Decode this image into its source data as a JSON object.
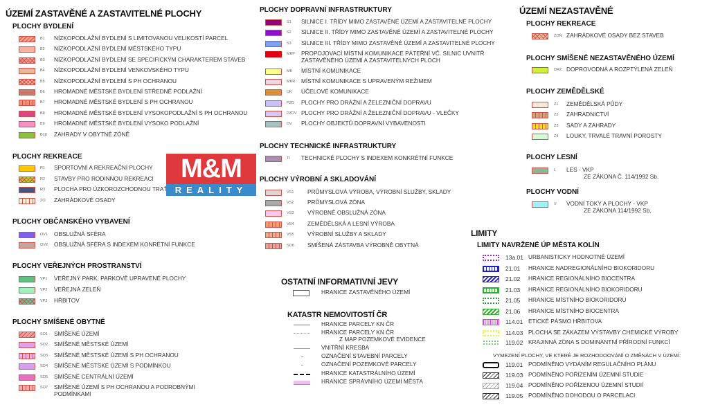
{
  "headings": {
    "built_up": "ÚZEMÍ ZASTAVĚNÉ A ZASTAVITELNÉ PLOCHY",
    "non_built": "ÚZEMÍ NEZASTAVĚNÉ",
    "other": "OSTATNÍ INFORMATIVNÍ JEVY",
    "cadastre": "KATASTR NEMOVITOSTÍ ČR",
    "limits": "LIMITY",
    "limits_sub": "LIMITY NAVRŽENÉ ÚP MĚSTA KOLÍN",
    "delimitation_note": "VYMEZENÍ PLOCHY, VE KTERÉ JE ROZHODOOVÁNÍ O ZMĚNÁCH V ÚZEMÍ:"
  },
  "logo": {
    "top": "M&M",
    "bottom": "REALITY",
    "colors": {
      "red": "#dc282d",
      "blue": "#2882c8"
    }
  },
  "groups": [
    {
      "title": "PLOCHY BYDLENÍ",
      "items": [
        {
          "code": "B1",
          "label": "NÍZKOPODLAŽNÍ BYDLENÍ S LIMITOVANOU VELIKOSTÍ PARCEL",
          "fill": "#f8a08a",
          "border": "#d0504a",
          "pattern": "hatch"
        },
        {
          "code": "B2",
          "label": "NÍZKOPODLAŽNÍ BYDLENÍ MĚSTSKÉHO TYPU",
          "fill": "#f9b0a0",
          "border": "#d0504a",
          "pattern": "solid"
        },
        {
          "code": "B3",
          "label": "NÍZKOPODLAŽNÍ BYDLENÍ  SE SPECIFICKÝM CHARAKTEREM STAVEB",
          "fill": "#f59a8a",
          "border": "#d0504a",
          "pattern": "cross"
        },
        {
          "code": "B4",
          "label": "NÍZKOPODLAŽNÍ BYDLENÍ VENKOVSKÉHO TYPU",
          "fill": "#e8b89a",
          "border": "#d0504a",
          "pattern": "solid"
        },
        {
          "code": "B5",
          "label": "NÍZKOPODLAŽNÍ BYDLENÍ S PH OCHRANOU",
          "fill": "#f4a898",
          "border": "#d0504a",
          "pattern": "cross"
        },
        {
          "code": "B6",
          "label": "HROMADNÉ MĚSTSKÉ BYDLENÍ STŘEDNĚ PODLAŽNÍ",
          "fill": "#c87868",
          "border": "#d0504a",
          "pattern": "solid"
        },
        {
          "code": "B7",
          "label": "HROMADNÉ MĚSTSKÉ BYDLENÍ S PH OCHRANOU",
          "fill": "#f89070",
          "border": "#d0504a",
          "pattern": "vbars"
        },
        {
          "code": "B8",
          "label": "HROMADNÉ MĚSTSKÉ BYDLENÍ VYSOKOPODLAŽNÍ S PH OCHRANOU",
          "fill": "#e040a0",
          "border": "#d0504a",
          "pattern": "hatch"
        },
        {
          "code": "B9",
          "label": "HROMADNÉ MĚSTSKÉ BYDLENÍ VYSOKO PODLAŽNÍ",
          "fill": "#f890c0",
          "border": "#d0504a",
          "pattern": "solid"
        },
        {
          "code": "B10",
          "label": "ZAHRADY V OBYTNÉ ZÓNĚ",
          "fill": "#8cc040",
          "border": "#d0504a",
          "pattern": "solid"
        }
      ]
    },
    {
      "title": "PLOCHY REKREACE",
      "items": [
        {
          "code": "R1",
          "label": "SPORTOVNÍ A REKREAČNÍ PLOCHY",
          "fill": "#ffc800",
          "border": "#d0504a",
          "pattern": "solid"
        },
        {
          "code": "R2",
          "label": "STAVBY PRO RODINNOU REKREACI",
          "fill": "#b8d030",
          "border": "#d0504a",
          "pattern": "cross"
        },
        {
          "code": "R3",
          "label": "PLOCHA PRO ÚZKOROZCHODNOU TRAŤ",
          "fill": "#3a5888",
          "border": "#d0504a",
          "pattern": "solid"
        },
        {
          "code": "ZO",
          "label": "ZAHRÁDKOVÉ OSADY",
          "fill": "#fff0d8",
          "border": "#d0504a",
          "pattern": "vbars"
        }
      ]
    },
    {
      "title": "PLOCHY OBČANSKÉHO VYBAVENÍ",
      "items": [
        {
          "code": "OV1",
          "label": "OBSLUŽNÁ SFÉRA",
          "fill": "#8060e8",
          "border": "#d0504a",
          "pattern": "solid"
        },
        {
          "code": "OV2",
          "label": "OBSLUŽNÁ SFÉRA S INDEXEM KONRÉTNÍ FUNKCE",
          "fill": "#c0a8a0",
          "border": "#d0504a",
          "pattern": "solid"
        }
      ]
    },
    {
      "title": "PLOCHY VEŘEJNÝCH PROSTRANSTVÍ",
      "items": [
        {
          "code": "VP1",
          "label": "VEŘEJNÝ PARK, PARKOVĚ UPRAVENÉ PLOCHY",
          "fill": "#60c080",
          "border": "#d0504a",
          "pattern": "solid"
        },
        {
          "code": "VP2",
          "label": "VEŘEJNÁ ZELEŇ",
          "fill": "#a0f0c0",
          "border": "#d0504a",
          "pattern": "solid"
        },
        {
          "code": "VP3",
          "label": "HŘBITOV",
          "fill": "#70c0a0",
          "border": "#d0504a",
          "pattern": "cross"
        }
      ]
    },
    {
      "title": "PLOCHY SMÍŠENÉ OBYTNÉ",
      "items": [
        {
          "code": "SO1",
          "label": "SMÍŠENÉ ÚZEMÍ",
          "fill": "#f0a0a0",
          "border": "#d0504a",
          "pattern": "hatch"
        },
        {
          "code": "SO2",
          "label": "SMÍŠENÉ MĚSTSKÉ ÚZEMÍ",
          "fill": "#e0a0f0",
          "border": "#d0504a",
          "pattern": "solid"
        },
        {
          "code": "SO3",
          "label": "SMÍŠENÉ MĚSTSKÉ ÚZEMÍ S PH OCHRANOU",
          "fill": "#e8b0f0",
          "border": "#d0504a",
          "pattern": "vbars"
        },
        {
          "code": "SO4",
          "label": "SMÍŠENÉ MĚSTSKÉ ÚZEMÍ S PODMÍNKOU",
          "fill": "#d8a0f0",
          "border": "#d0504a",
          "pattern": "solid"
        },
        {
          "code": "SO5",
          "label": "SMÍŠENÉ CENTRÁLNÍ ÚZEMÍ",
          "fill": "#e870c0",
          "border": "#d0504a",
          "pattern": "solid"
        },
        {
          "code": "SO7",
          "label": "SMÍŠENÉ ÚZEMÍ S PH OCHRANOU A PODROBNÝMI",
          "label2": "PODMÍNKAMI",
          "fill": "#f0b0b0",
          "border": "#d0504a",
          "pattern": "vbars"
        }
      ]
    },
    {
      "title": "PLOCHY DOPRAVNÍ INFRASTRUKTURY",
      "items": [
        {
          "code": "S1",
          "label": "SILNICE I. TŘÍDY MIMO ZASTAVĚNÉ ÚZEMÍ A ZASTAVITELNÉ PLOCHY",
          "fill": "#900080",
          "border": "#d0504a",
          "pattern": "solid"
        },
        {
          "code": "S2",
          "label": "SILNICE II. TŘÍDY MIMO ZASTAVĚNÉ ÚZEMÍ A ZASTAVITELNÉ PLOCHY",
          "fill": "#9010d0",
          "border": "#d0504a",
          "pattern": "solid"
        },
        {
          "code": "S3",
          "label": "SILNICE III. TŘÍDY MIMO ZASTAVĚNÉ ÚZEMÍ A ZASTAVITELNÉ PLOCHY",
          "fill": "#80a0f0",
          "border": "#d0504a",
          "pattern": "solid"
        },
        {
          "code": "MKP",
          "label": "PROPOJOVACÍ MÍSTNÍ KOMUNIKACE PÁTEŘNÍ VČ. SILNIC UVNITŘ",
          "label2": "ZASTAVĚNÉHO ÚZEMÍ A ZASTAVITELNÝCH PLOCH",
          "fill": "#e00010",
          "border": "#e00010",
          "pattern": "solid"
        },
        {
          "code": "MK",
          "label": "MÍSTNÍ KOMUNIKACE",
          "fill": "#ffff90",
          "border": "#d0504a",
          "pattern": "solid"
        },
        {
          "code": "MKR",
          "label": "MÍSTNÍ KOMUNIKACE S UPRAVENÝM REŽIMEM",
          "fill": "#e8d8e8",
          "border": "#d0504a",
          "pattern": "solid"
        },
        {
          "code": "UK",
          "label": "ÚČELOVÉ KOMUNIKACE",
          "fill": "#d89040",
          "border": "#d0504a",
          "pattern": "solid"
        },
        {
          "code": "PZD",
          "label": "PLOCHY PRO DRÁŽNÍ A ŽELEZNIČNÍ DOPRAVU",
          "fill": "#c8c0f8",
          "border": "#d0504a",
          "pattern": "solid"
        },
        {
          "code": "PZDV",
          "label": "PLOCHY PRO DRÁŽNÍ A ŽELEZNIČNÍ DOPRAVU - VLEČKY",
          "fill": "#d0c8f8",
          "border": "#d0504a",
          "pattern": "solid"
        },
        {
          "code": "DV",
          "label": "PLOCHY OBJEKTŮ DOPRAVNÍ VYBAVENOSTI",
          "fill": "#a8c0c0",
          "border": "#d0504a",
          "pattern": "solid"
        }
      ]
    },
    {
      "title": "PLOCHY TECHNICKÉ INFRASTRUKTURY",
      "items": [
        {
          "code": "TI",
          "label": "TECHNICKÉ PLOCHY S INDEXEM KONKRÉTNÍ FUNKCE",
          "fill": "#a890b0",
          "border": "#d0504a",
          "pattern": "solid"
        }
      ]
    },
    {
      "title": "PLOCHY VÝROBNÍ A SKLADOVÁNÍ",
      "items": [
        {
          "code": "VS1",
          "label": "PRŮMYSLOVÁ VÝROBA, VÝROBNÍ SLUŽBY, SKLADY",
          "fill": "#d8d8d8",
          "border": "#d0504a",
          "pattern": "solid"
        },
        {
          "code": "VS2",
          "label": "PRŮMYSLOVÁ ZÓNA",
          "fill": "#a8a8a8",
          "border": "#d0504a",
          "pattern": "solid"
        },
        {
          "code": "VS3",
          "label": "VÝROBNĚ OBSLUŽNÁ ZÓNA",
          "fill": "#f8c8f0",
          "border": "#d0504a",
          "pattern": "solid"
        },
        {
          "code": "VS4",
          "label": "ZEMĚDĚLSKÁ A LESNÍ VÝROBA",
          "fill": "#f0a070",
          "border": "#d0504a",
          "pattern": "vbars"
        },
        {
          "code": "VS5",
          "label": "VÝROBNÍ SLUŽBY A SKLADY",
          "fill": "#e8b090",
          "border": "#d0504a",
          "pattern": "vbars"
        },
        {
          "code": "SO6",
          "label": "SMÍŠENÁ ZÁSTAVBA VÝROBNĚ OBYTNÁ",
          "fill": "#e0a8a0",
          "border": "#d0504a",
          "pattern": "vbars"
        }
      ]
    },
    {
      "title": "PLOCHY REKREACE",
      "items": [
        {
          "code": "ZON",
          "label": "ZAHRÁDKOVÉ OSADY BEZ STAVEB",
          "fill": "#e8c8a0",
          "border": "#d0504a",
          "pattern": "cross"
        }
      ]
    },
    {
      "title": "PLOCHY SMÍŠENÉ NEZASTAVĚNÉHO ÚZEMÍ",
      "items": [
        {
          "code": "DRZ",
          "label": "DOPROVODNÁ A ROZPTÝLENÁ ZELEŇ",
          "fill": "#d0f040",
          "border": "#d0504a",
          "pattern": "solid"
        }
      ]
    },
    {
      "title": "PLOCHY ZEMĚDĚLSKÉ",
      "items": [
        {
          "code": "Z1",
          "label": "ZEMĚDĚLSKÁ PŮDY",
          "fill": "#fce8d8",
          "border": "#d0504a",
          "pattern": "solid"
        },
        {
          "code": "Z2",
          "label": "ZAHRADNICTVÍ",
          "fill": "#c8a878",
          "border": "#d0504a",
          "pattern": "vbars"
        },
        {
          "code": "Z3",
          "label": "SADY A ZAHRADY",
          "fill": "#f8e020",
          "border": "#d0504a",
          "pattern": "vbars"
        },
        {
          "code": "Z4",
          "label": "LOUKY, TRVALÉ TRAVNÍ POROSTY",
          "fill": "#d8f8d8",
          "border": "#d0504a",
          "pattern": "solid"
        }
      ]
    },
    {
      "title": "PLOCHY LESNÍ",
      "items": [
        {
          "code": "L",
          "label": "LES - VKP",
          "label2": "ZE ZÁKONA Č. 114/1992 Sb.",
          "fill": "#88b898",
          "border": "#d0504a",
          "pattern": "solid"
        }
      ]
    },
    {
      "title": "PLOCHY VODNÍ",
      "items": [
        {
          "code": "V",
          "label": "VODNÍ TOKY A PLOCHY - VKP",
          "label2": "ZE ZÁKONA 114/1992 Sb.",
          "fill": "#a0f0f8",
          "border": "#d0504a",
          "pattern": "solid"
        }
      ]
    }
  ],
  "other_items": [
    {
      "label": "HRANICE ZASTAVĚNÉHO ÚZEMÍ",
      "symbol": "outline-rect"
    }
  ],
  "cadastre_items": [
    {
      "label": "HRANICE PARCELY KN ČR",
      "symbol": "solid-line"
    },
    {
      "label": "HRANICE PARCELY KN ČR",
      "label2": "Z MAP POZEMKOVÉ EVIDENCE",
      "symbol": "dotted-line"
    },
    {
      "label": "VNITŘNÍ KRESBA",
      "symbol": "thin-line"
    },
    {
      "label": "OZNAČENÍ STAVEBNÍ PARCELY",
      "symbol": "dash"
    },
    {
      "label": "OZNAČENÍ POZEMKOVÉ PARCELY",
      "symbol": "dash"
    },
    {
      "label": "HRANICE KATASTRÁLNÍHO ÚZEMÍ",
      "symbol": "dot-dash-thick"
    },
    {
      "label": "HRANICE SPRÁVNÍHO ÚZEMÍ MĚSTA",
      "symbol": "pink-band"
    }
  ],
  "limit_items": [
    {
      "code": "13a.01",
      "label": "URBANISTICKY HODNOTNÉ ÚZEMÍ",
      "color": "#a020c0",
      "symbol": "dotted-rect"
    },
    {
      "code": "21.01",
      "label": "HRANICE NADREGIONÁLNÍHO BIOKORIDORU",
      "color": "#2020c0",
      "symbol": "crenel-rect"
    },
    {
      "code": "21.02",
      "label": "HRANICE REGIONÁLNÍHO BIOCENTRA",
      "color": "#2020d0",
      "symbol": "wave-rect"
    },
    {
      "code": "21.03",
      "label": "HRANICE REGIONÁLNÍHO BIOKORIDORU",
      "color": "#30b030",
      "symbol": "crenel-rect"
    },
    {
      "code": "21.05",
      "label": "HRANICE MÍSTNÍHO BIOKORIDORU",
      "color": "#30a030",
      "symbol": "dotted-rect"
    },
    {
      "code": "21.06",
      "label": "HRANICE MÍSTNÍHO BIOCENTRA",
      "color": "#30b030",
      "symbol": "wave-rect"
    },
    {
      "code": "114.01",
      "label": "ETICKÉ PÁSMO HŘBITOVA",
      "color": "#e040e0",
      "symbol": "zigzag-rect"
    },
    {
      "code": "114.03",
      "label": "PLOCHA SE ZÁKAZEM VÝSTAVBY CHEMICKÉ VÝROBY",
      "color": "#f0f020",
      "symbol": "dotted-rect"
    },
    {
      "code": "119.02",
      "label": "KRAJINNÁ ZÓNA S DOMINANTNÍ PŘÍRODNÍ FUNKCÍ",
      "color": "#60c060",
      "symbol": "dots"
    }
  ],
  "delimitation_items": [
    {
      "code": "119.01",
      "label": "PODMÍNĚNO VYDÁNÍM REGULAČNÍHO PLÁNU",
      "color": "#111111",
      "symbol": "node-rect"
    },
    {
      "code": "119.03",
      "label": "PODMÍNĚNO POŘÍZENÍM ÚZEMNÍ STUDIE",
      "color": "#333333",
      "symbol": "hatch-rect"
    },
    {
      "code": "119.04",
      "label": "PODMÍNĚNO POŘÍZENOU ÚZEMNÍ STUDIÍ",
      "color": "#aaaaaa",
      "symbol": "hatch-rect"
    },
    {
      "code": "119.05",
      "label": "PODMÍNĚNO DOHODOU O PARCELACI",
      "color": "#333333",
      "symbol": "hatch-rect"
    }
  ]
}
